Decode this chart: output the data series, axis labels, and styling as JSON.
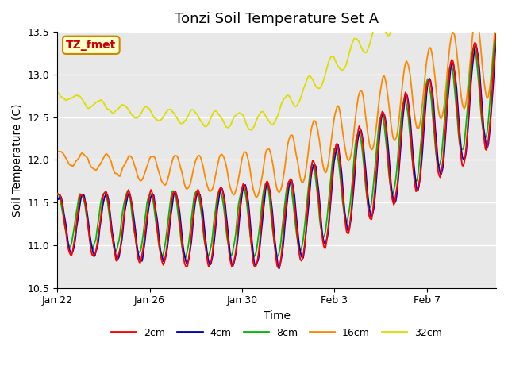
{
  "title": "Tonzi Soil Temperature Set A",
  "xlabel": "Time",
  "ylabel": "Soil Temperature (C)",
  "ylim": [
    10.5,
    13.5
  ],
  "yticks": [
    10.5,
    11.0,
    11.5,
    12.0,
    12.5,
    13.0,
    13.5
  ],
  "x_tick_labels": [
    "Jan 22",
    "Jan 26",
    "Jan 30",
    "Feb 3",
    "Feb 7"
  ],
  "legend_labels": [
    "2cm",
    "4cm",
    "8cm",
    "16cm",
    "32cm"
  ],
  "legend_colors": [
    "#ff0000",
    "#0000bb",
    "#00bb00",
    "#ff8800",
    "#dddd00"
  ],
  "annotation_text": "TZ_fmet",
  "annotation_bg": "#ffffcc",
  "annotation_border": "#cc8800",
  "annotation_text_color": "#cc0000",
  "bg_plot": "#e8e8e8",
  "bg_fig": "#ffffff",
  "grid_color": "#ffffff",
  "title_fontsize": 13,
  "axis_label_fontsize": 10,
  "tick_fontsize": 9,
  "legend_fontsize": 9
}
